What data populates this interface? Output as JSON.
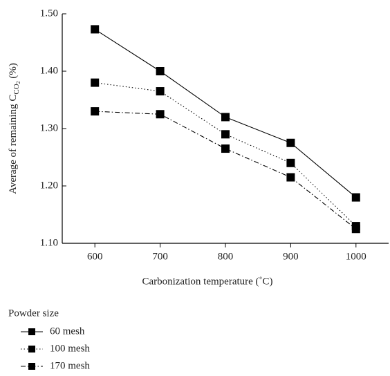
{
  "chart_data": {
    "type": "line",
    "x_label": "Carbonization temperature (˚C)",
    "y_label": [
      "Average of remaining C",
      "CO",
      "2",
      " (%)"
    ],
    "x": [
      600,
      700,
      800,
      900,
      1000
    ],
    "series": [
      {
        "name": "60 mesh",
        "color": "#000000",
        "dash": "none",
        "values": [
          1.473,
          1.4,
          1.32,
          1.275,
          1.18
        ]
      },
      {
        "name": "100 mesh",
        "color": "#000000",
        "dash": "1.5 3",
        "values": [
          1.38,
          1.365,
          1.29,
          1.24,
          1.13
        ]
      },
      {
        "name": "170 mesh",
        "color": "#000000",
        "dash": "7 3 1.5 3",
        "values": [
          1.33,
          1.325,
          1.265,
          1.215,
          1.125
        ]
      }
    ],
    "legend_title": "Powder size",
    "xlim": [
      550,
      1050
    ],
    "xticks": [
      600,
      700,
      800,
      900,
      1000
    ],
    "ylim": [
      1.1,
      1.5
    ],
    "yticks": [
      {
        "value": 1.1,
        "label": "1.10"
      },
      {
        "value": 1.2,
        "label": "1.20"
      },
      {
        "value": 1.3,
        "label": "1.30"
      },
      {
        "value": 1.4,
        "label": "1.40"
      },
      {
        "value": 1.5,
        "label": "1.50"
      }
    ],
    "legend": "below"
  }
}
